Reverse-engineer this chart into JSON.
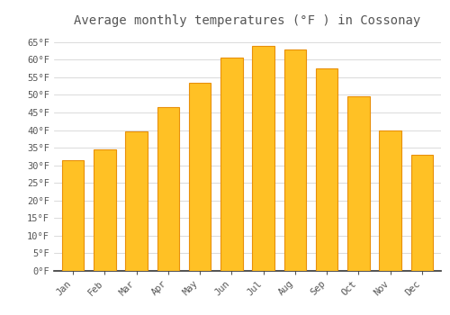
{
  "title": "Average monthly temperatures (°F ) in Cossonay",
  "months": [
    "Jan",
    "Feb",
    "Mar",
    "Apr",
    "May",
    "Jun",
    "Jul",
    "Aug",
    "Sep",
    "Oct",
    "Nov",
    "Dec"
  ],
  "values": [
    31.5,
    34.5,
    39.5,
    46.5,
    53.5,
    60.5,
    64.0,
    63.0,
    57.5,
    49.5,
    40.0,
    33.0
  ],
  "bar_color": "#FFC125",
  "bar_edge_color": "#E8900A",
  "background_color": "#FFFFFF",
  "grid_color": "#CCCCCC",
  "text_color": "#555555",
  "ylim": [
    0,
    68
  ],
  "yticks": [
    0,
    5,
    10,
    15,
    20,
    25,
    30,
    35,
    40,
    45,
    50,
    55,
    60,
    65
  ],
  "title_fontsize": 10,
  "tick_fontsize": 7.5,
  "bar_width": 0.7
}
